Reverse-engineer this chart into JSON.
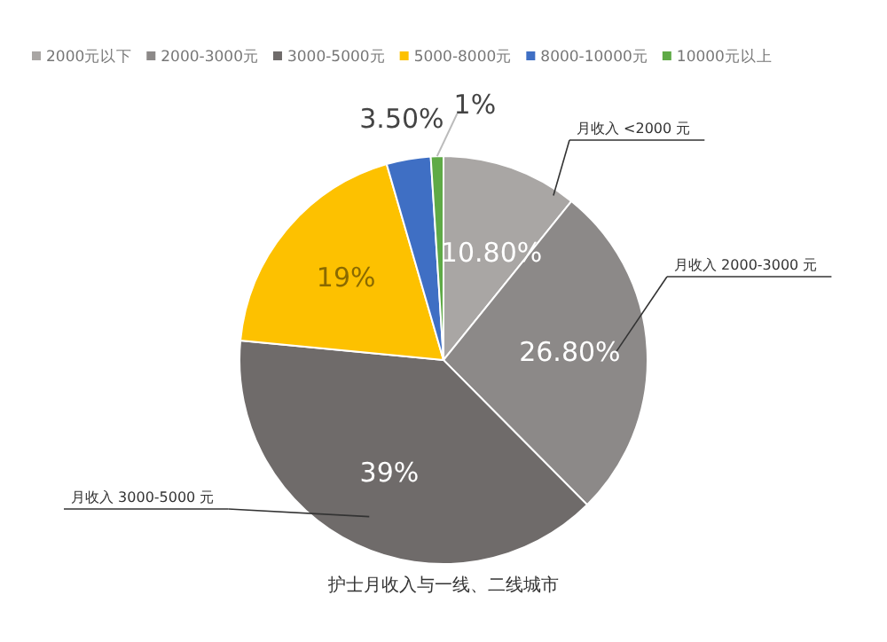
{
  "chart_data": {
    "type": "pie",
    "categories": [
      "2000元以下",
      "2000-3000元",
      "3000-5000元",
      "5000-8000元",
      "8000-10000元",
      "10000元以上"
    ],
    "values": [
      10.8,
      26.8,
      39,
      19,
      3.5,
      1
    ],
    "colors": [
      "#a9a6a4",
      "#8c8988",
      "#6f6b6a",
      "#fdc100",
      "#3f6fc4",
      "#5faa46"
    ],
    "value_labels": [
      "10.80%",
      "26.80%",
      "39%",
      "19%",
      "3.50%",
      "1%"
    ],
    "legend": "top",
    "annotations": [
      "月收入 <2000 元",
      "月收入 2000-3000 元",
      "月收入 3000-5000 元",
      "护士月收入与一线、二线城市"
    ]
  }
}
